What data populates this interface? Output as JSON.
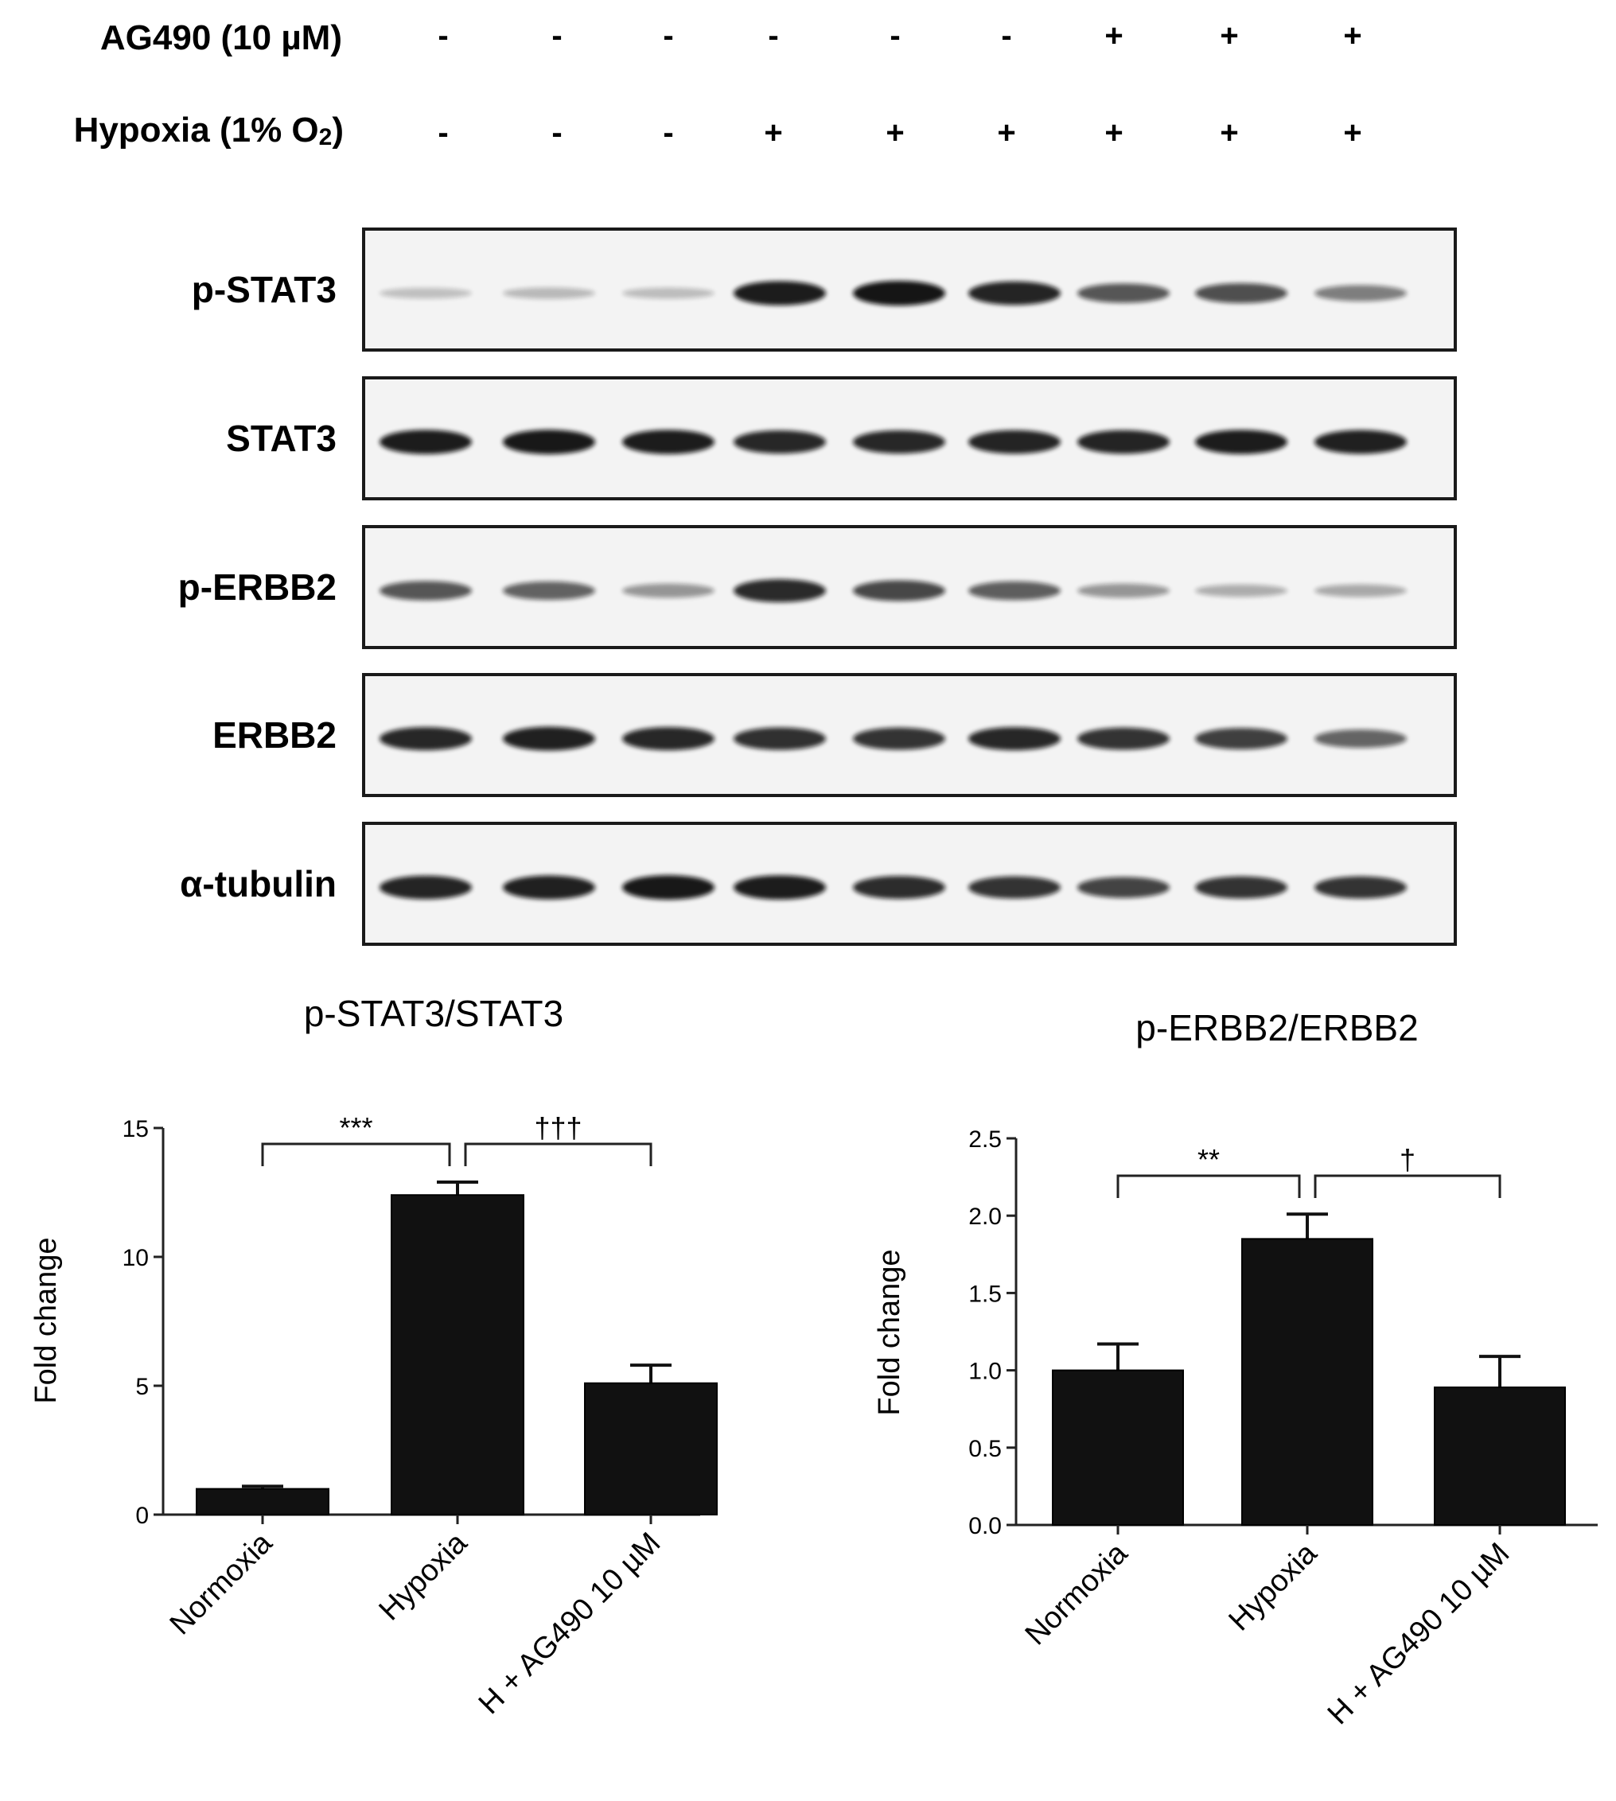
{
  "treatments": [
    {
      "label": "AG490 (10 µM)",
      "signs": [
        "-",
        "-",
        "-",
        "-",
        "-",
        "-",
        "+",
        "+",
        "+"
      ]
    },
    {
      "label_main": "Hypoxia (1% O",
      "label_sub": "2",
      "label_end": ")",
      "signs": [
        "-",
        "-",
        "-",
        "+",
        "+",
        "+",
        "+",
        "+",
        "+"
      ]
    }
  ],
  "blots": [
    {
      "label": "p-STAT3",
      "intensities": [
        0.08,
        0.12,
        0.1,
        0.92,
        0.96,
        0.88,
        0.62,
        0.66,
        0.42
      ]
    },
    {
      "label": "STAT3",
      "intensities": [
        0.92,
        0.94,
        0.92,
        0.86,
        0.86,
        0.88,
        0.88,
        0.92,
        0.9
      ]
    },
    {
      "label": "p-ERBB2",
      "intensities": [
        0.62,
        0.56,
        0.3,
        0.85,
        0.7,
        0.58,
        0.3,
        0.18,
        0.2
      ]
    },
    {
      "label": "ERBB2",
      "intensities": [
        0.86,
        0.9,
        0.86,
        0.82,
        0.8,
        0.86,
        0.8,
        0.74,
        0.55
      ]
    },
    {
      "label": "α-tubulin",
      "intensities": [
        0.88,
        0.9,
        0.94,
        0.92,
        0.84,
        0.8,
        0.72,
        0.8,
        0.8
      ]
    }
  ],
  "chart_data": [
    {
      "type": "bar",
      "title": "p-STAT3/STAT3",
      "ylabel": "Fold change",
      "xlabel": "",
      "categories": [
        "Normoxia",
        "Hypoxia",
        "H + AG490 10 µM"
      ],
      "values": [
        1.0,
        12.4,
        5.1
      ],
      "errors": [
        0.1,
        0.5,
        0.7
      ],
      "ylim": [
        0,
        15
      ],
      "yticks": [
        "0",
        "5",
        "10",
        "15"
      ],
      "significance": [
        {
          "from": 0,
          "to": 1,
          "label": "***"
        },
        {
          "from": 1,
          "to": 2,
          "label": "†††"
        }
      ]
    },
    {
      "type": "bar",
      "title": "p-ERBB2/ERBB2",
      "ylabel": "Fold change",
      "xlabel": "",
      "categories": [
        "Normoxia",
        "Hypoxia",
        "H + AG490 10 µM"
      ],
      "values": [
        1.0,
        1.85,
        0.89
      ],
      "errors": [
        0.17,
        0.16,
        0.2
      ],
      "ylim": [
        0,
        2.5
      ],
      "yticks": [
        "0.0",
        "0.5",
        "1.0",
        "1.5",
        "2.0",
        "2.5"
      ],
      "significance": [
        {
          "from": 0,
          "to": 1,
          "label": "**"
        },
        {
          "from": 1,
          "to": 2,
          "label": "†"
        }
      ]
    }
  ],
  "colors": {
    "bar": "#111111",
    "axis": "#222222",
    "membrane": "#f3f3f3",
    "band": "#111111"
  }
}
